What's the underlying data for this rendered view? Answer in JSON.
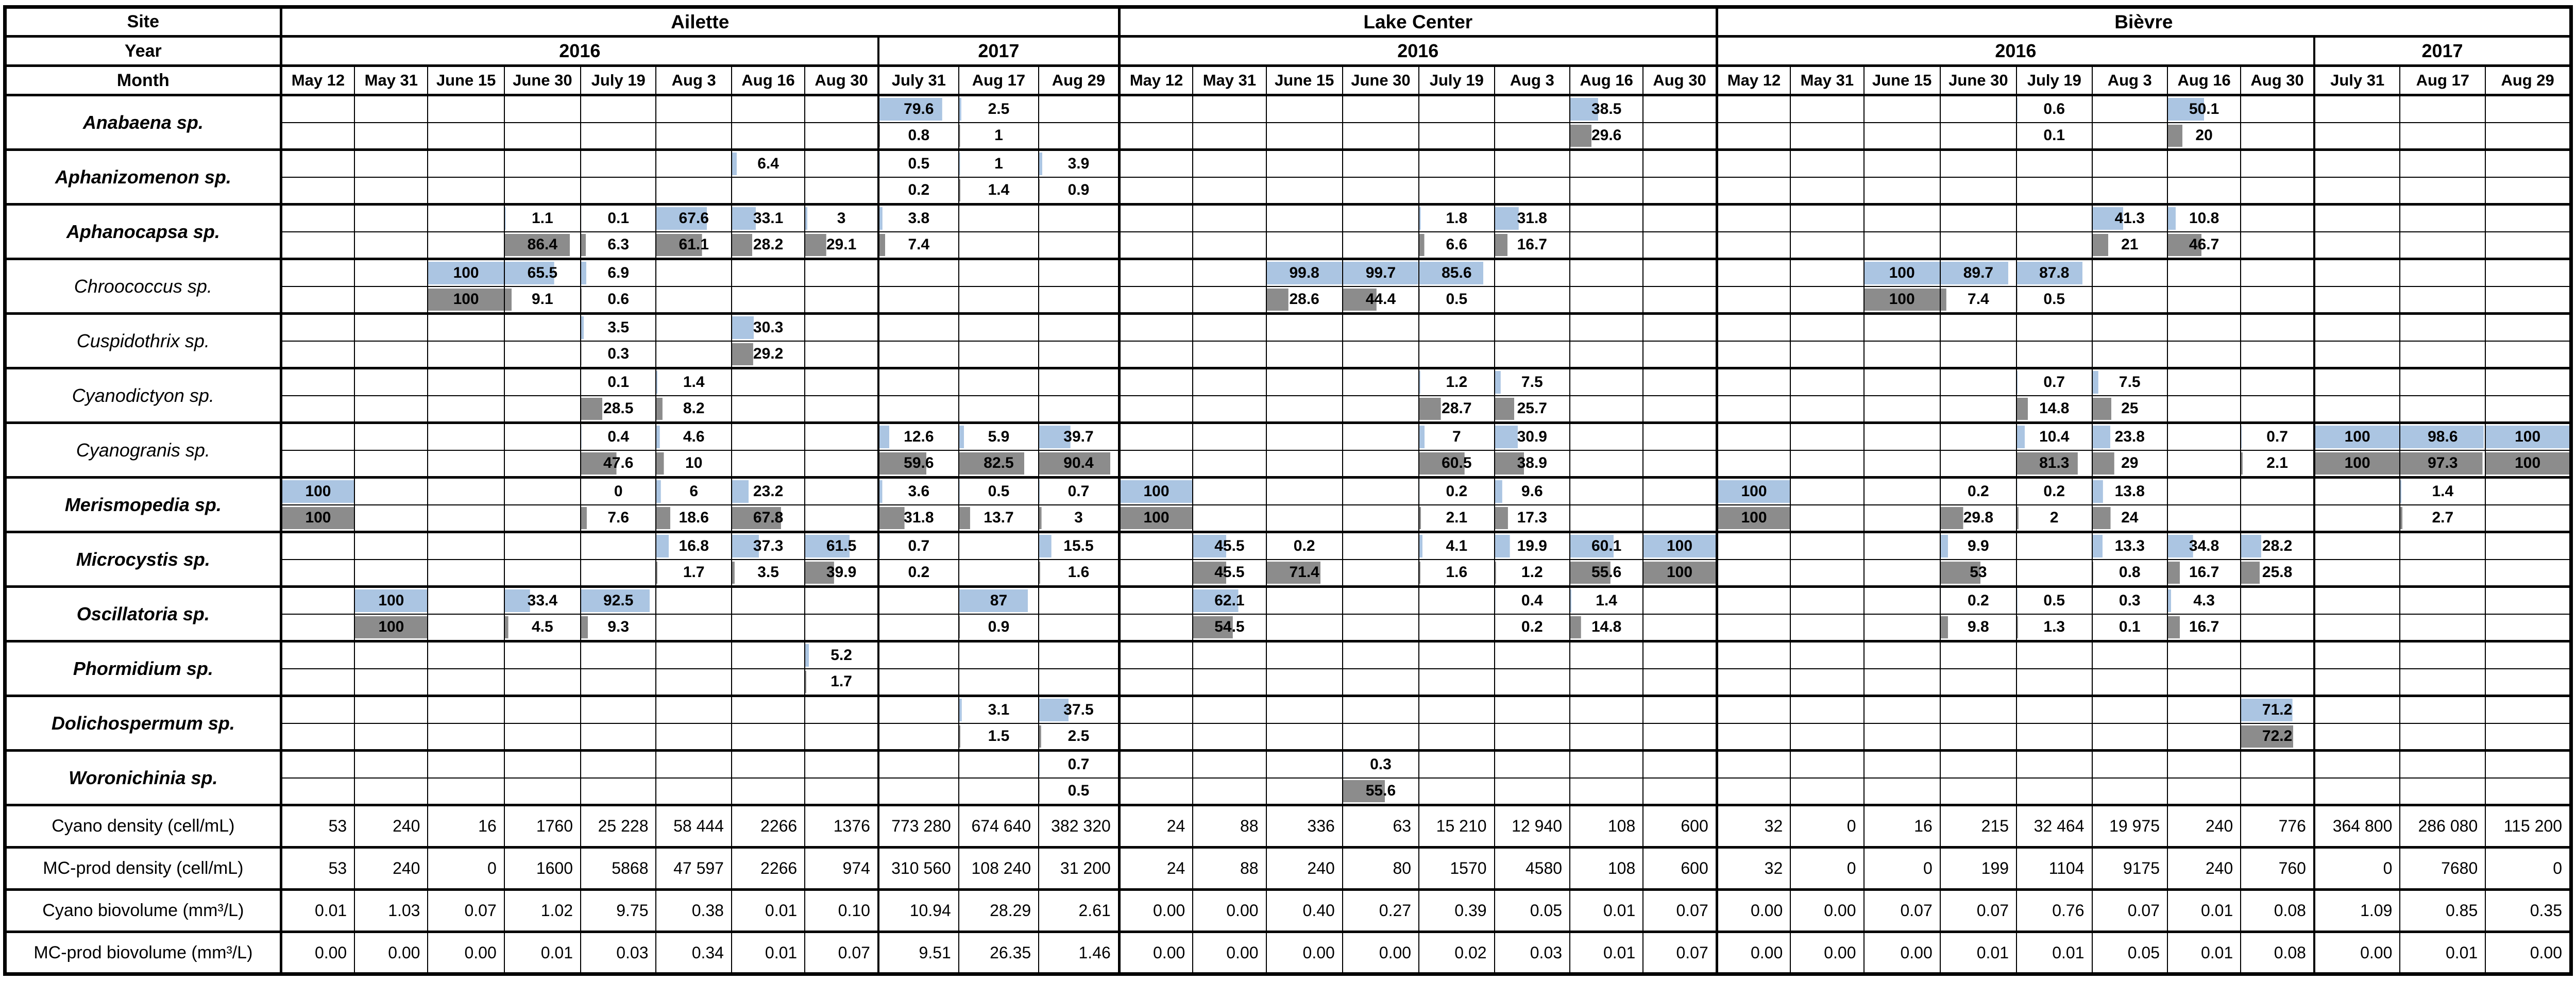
{
  "header": {
    "site_label": "Site",
    "year_label": "Year",
    "month_label": "Month"
  },
  "chart_data": {
    "type": "table",
    "description": "Relative abundance (%) of cyanobacteria taxa per sampling date and site; top sub-row (blue data bar) and bottom sub-row (grey data bar) per species, with density and biovolume summary rows.",
    "colors": {
      "top_bar": "#abc5e2",
      "bottom_bar": "#8c8c8c",
      "grid": "#000000"
    },
    "column_groups": [
      {
        "site": "Ailette",
        "years": [
          {
            "year": "2016",
            "months": [
              "May 12",
              "May 31",
              "June 15",
              "June 30",
              "July 19",
              "Aug 3",
              "Aug 16",
              "Aug 30"
            ]
          },
          {
            "year": "2017",
            "months": [
              "July 31",
              "Aug 17",
              "Aug 29"
            ]
          }
        ]
      },
      {
        "site": "Lake Center",
        "years": [
          {
            "year": "2016",
            "months": [
              "May 12",
              "May 31",
              "June 15",
              "June 30",
              "July 19",
              "Aug 3",
              "Aug 16",
              "Aug 30"
            ]
          }
        ]
      },
      {
        "site": "Bièvre",
        "years": [
          {
            "year": "2016",
            "months": [
              "May 12",
              "May 31",
              "June 15",
              "June 30",
              "July 19",
              "Aug 3",
              "Aug 16",
              "Aug 30"
            ]
          },
          {
            "year": "2017",
            "months": [
              "July 31",
              "Aug 17",
              "Aug 29"
            ]
          }
        ]
      }
    ],
    "species": [
      {
        "name": "Anabaena sp.",
        "bold": true,
        "top": [
          "",
          "",
          "",
          "",
          "",
          "",
          "",
          "",
          "79.6",
          "2.5",
          "",
          "",
          "",
          "",
          "",
          "",
          "",
          "38.5",
          "",
          "",
          "",
          "",
          "",
          "0.6",
          "",
          "50.1",
          "",
          "",
          "",
          ""
        ],
        "bottom": [
          "",
          "",
          "",
          "",
          "",
          "",
          "",
          "",
          "0.8",
          "1",
          "",
          "",
          "",
          "",
          "",
          "",
          "",
          "29.6",
          "",
          "",
          "",
          "",
          "",
          "0.1",
          "",
          "20",
          "",
          "",
          "",
          ""
        ]
      },
      {
        "name": "Aphanizomenon sp.",
        "bold": true,
        "top": [
          "",
          "",
          "",
          "",
          "",
          "",
          "6.4",
          "",
          "0.5",
          "1",
          "3.9",
          "",
          "",
          "",
          "",
          "",
          "",
          "",
          "",
          "",
          "",
          "",
          "",
          "",
          "",
          "",
          "",
          "",
          "",
          ""
        ],
        "bottom": [
          "",
          "",
          "",
          "",
          "",
          "",
          "",
          "",
          "0.2",
          "1.4",
          "0.9",
          "",
          "",
          "",
          "",
          "",
          "",
          "",
          "",
          "",
          "",
          "",
          "",
          "",
          "",
          "",
          "",
          "",
          "",
          ""
        ]
      },
      {
        "name": "Aphanocapsa sp.",
        "bold": true,
        "top": [
          "",
          "",
          "",
          "1.1",
          "0.1",
          "67.6",
          "33.1",
          "3",
          "3.8",
          "",
          "",
          "",
          "",
          "",
          "",
          "1.8",
          "31.8",
          "",
          "",
          "",
          "",
          "",
          "",
          "",
          "41.3",
          "10.8",
          "",
          "",
          "",
          ""
        ],
        "bottom": [
          "",
          "",
          "",
          "86.4",
          "6.3",
          "61.1",
          "28.2",
          "29.1",
          "7.4",
          "",
          "",
          "",
          "",
          "",
          "",
          "6.6",
          "16.7",
          "",
          "",
          "",
          "",
          "",
          "",
          "",
          "21",
          "46.7",
          "",
          "",
          "",
          ""
        ]
      },
      {
        "name": "Chroococcus sp.",
        "bold": false,
        "top": [
          "",
          "",
          "100",
          "65.5",
          "6.9",
          "",
          "",
          "",
          "",
          "",
          "",
          "",
          "",
          "99.8",
          "99.7",
          "85.6",
          "",
          "",
          "",
          "",
          "",
          "100",
          "89.7",
          "87.8",
          "",
          "",
          "",
          "",
          "",
          ""
        ],
        "bottom": [
          "",
          "",
          "100",
          "9.1",
          "0.6",
          "",
          "",
          "",
          "",
          "",
          "",
          "",
          "",
          "28.6",
          "44.4",
          "0.5",
          "",
          "",
          "",
          "",
          "",
          "100",
          "7.4",
          "0.5",
          "",
          "",
          "",
          "",
          "",
          ""
        ]
      },
      {
        "name": "Cuspidothrix sp.",
        "bold": false,
        "top": [
          "",
          "",
          "",
          "",
          "3.5",
          "",
          "30.3",
          "",
          "",
          "",
          "",
          "",
          "",
          "",
          "",
          "",
          "",
          "",
          "",
          "",
          "",
          "",
          "",
          "",
          "",
          "",
          "",
          "",
          "",
          ""
        ],
        "bottom": [
          "",
          "",
          "",
          "",
          "0.3",
          "",
          "29.2",
          "",
          "",
          "",
          "",
          "",
          "",
          "",
          "",
          "",
          "",
          "",
          "",
          "",
          "",
          "",
          "",
          "",
          "",
          "",
          "",
          "",
          "",
          ""
        ]
      },
      {
        "name": "Cyanodictyon sp.",
        "bold": false,
        "top": [
          "",
          "",
          "",
          "",
          "0.1",
          "1.4",
          "",
          "",
          "",
          "",
          "",
          "",
          "",
          "",
          "",
          "1.2",
          "7.5",
          "",
          "",
          "",
          "",
          "",
          "",
          "0.7",
          "7.5",
          "",
          "",
          "",
          "",
          ""
        ],
        "bottom": [
          "",
          "",
          "",
          "",
          "28.5",
          "8.2",
          "",
          "",
          "",
          "",
          "",
          "",
          "",
          "",
          "",
          "28.7",
          "25.7",
          "",
          "",
          "",
          "",
          "",
          "",
          "14.8",
          "25",
          "",
          "",
          "",
          "",
          ""
        ]
      },
      {
        "name": "Cyanogranis sp.",
        "bold": false,
        "top": [
          "",
          "",
          "",
          "",
          "0.4",
          "4.6",
          "",
          "",
          "12.6",
          "5.9",
          "39.7",
          "",
          "",
          "",
          "",
          "7",
          "30.9",
          "",
          "",
          "",
          "",
          "",
          "",
          "10.4",
          "23.8",
          "",
          "0.7",
          "100",
          "98.6",
          "100"
        ],
        "bottom": [
          "",
          "",
          "",
          "",
          "47.6",
          "10",
          "",
          "",
          "59.6",
          "82.5",
          "90.4",
          "",
          "",
          "",
          "",
          "60.5",
          "38.9",
          "",
          "",
          "",
          "",
          "",
          "",
          "81.3",
          "29",
          "",
          "2.1",
          "100",
          "97.3",
          "100"
        ]
      },
      {
        "name": "Merismopedia sp.",
        "bold": true,
        "top": [
          "100",
          "",
          "",
          "",
          "0",
          "6",
          "23.2",
          "",
          "3.6",
          "0.5",
          "0.7",
          "100",
          "",
          "",
          "",
          "0.2",
          "9.6",
          "",
          "",
          "100",
          "",
          "",
          "0.2",
          "0.2",
          "13.8",
          "",
          "",
          "",
          "1.4",
          ""
        ],
        "bottom": [
          "100",
          "",
          "",
          "",
          "7.6",
          "18.6",
          "67.8",
          "",
          "31.8",
          "13.7",
          "3",
          "100",
          "",
          "",
          "",
          "2.1",
          "17.3",
          "",
          "",
          "100",
          "",
          "",
          "29.8",
          "2",
          "24",
          "",
          "",
          "",
          "2.7",
          ""
        ]
      },
      {
        "name": "Microcystis sp.",
        "bold": true,
        "top": [
          "",
          "",
          "",
          "",
          "",
          "16.8",
          "37.3",
          "61.5",
          "0.7",
          "",
          "15.5",
          "",
          "45.5",
          "0.2",
          "",
          "4.1",
          "19.9",
          "60.1",
          "100",
          "",
          "",
          "",
          "9.9",
          "",
          "13.3",
          "34.8",
          "28.2",
          "",
          "",
          ""
        ],
        "bottom": [
          "",
          "",
          "",
          "",
          "",
          "1.7",
          "3.5",
          "39.9",
          "0.2",
          "",
          "1.6",
          "",
          "45.5",
          "71.4",
          "",
          "1.6",
          "1.2",
          "55.6",
          "100",
          "",
          "",
          "",
          "53",
          "",
          "0.8",
          "16.7",
          "25.8",
          "",
          "",
          ""
        ]
      },
      {
        "name": "Oscillatoria sp.",
        "bold": true,
        "top": [
          "",
          "100",
          "",
          "33.4",
          "92.5",
          "",
          "",
          "",
          "",
          "87",
          "",
          "",
          "62.1",
          "",
          "",
          "",
          "0.4",
          "1.4",
          "",
          "",
          "",
          "",
          "0.2",
          "0.5",
          "0.3",
          "4.3",
          "",
          "",
          "",
          ""
        ],
        "bottom": [
          "",
          "100",
          "",
          "4.5",
          "9.3",
          "",
          "",
          "",
          "",
          "0.9",
          "",
          "",
          "54.5",
          "",
          "",
          "",
          "0.2",
          "14.8",
          "",
          "",
          "",
          "",
          "9.8",
          "1.3",
          "0.1",
          "16.7",
          "",
          "",
          "",
          ""
        ]
      },
      {
        "name": "Phormidium sp.",
        "bold": true,
        "top": [
          "",
          "",
          "",
          "",
          "",
          "",
          "",
          "5.2",
          "",
          "",
          "",
          "",
          "",
          "",
          "",
          "",
          "",
          "",
          "",
          "",
          "",
          "",
          "",
          "",
          "",
          "",
          "",
          "",
          "",
          ""
        ],
        "bottom": [
          "",
          "",
          "",
          "",
          "",
          "",
          "",
          "1.7",
          "",
          "",
          "",
          "",
          "",
          "",
          "",
          "",
          "",
          "",
          "",
          "",
          "",
          "",
          "",
          "",
          "",
          "",
          "",
          "",
          "",
          ""
        ]
      },
      {
        "name": "Dolichospermum sp.",
        "bold": true,
        "top": [
          "",
          "",
          "",
          "",
          "",
          "",
          "",
          "",
          "",
          "3.1",
          "37.5",
          "",
          "",
          "",
          "",
          "",
          "",
          "",
          "",
          "",
          "",
          "",
          "",
          "",
          "",
          "",
          "71.2",
          "",
          "",
          ""
        ],
        "bottom": [
          "",
          "",
          "",
          "",
          "",
          "",
          "",
          "",
          "",
          "1.5",
          "2.5",
          "",
          "",
          "",
          "",
          "",
          "",
          "",
          "",
          "",
          "",
          "",
          "",
          "",
          "",
          "",
          "72.2",
          "",
          "",
          ""
        ]
      },
      {
        "name": "Woronichinia sp.",
        "bold": true,
        "top": [
          "",
          "",
          "",
          "",
          "",
          "",
          "",
          "",
          "",
          "",
          "0.7",
          "",
          "",
          "",
          "0.3",
          "",
          "",
          "",
          "",
          "",
          "",
          "",
          "",
          "",
          "",
          "",
          "",
          "",
          "",
          ""
        ],
        "bottom": [
          "",
          "",
          "",
          "",
          "",
          "",
          "",
          "",
          "",
          "",
          "0.5",
          "",
          "",
          "",
          "55.6",
          "",
          "",
          "",
          "",
          "",
          "",
          "",
          "",
          "",
          "",
          "",
          "",
          "",
          "",
          ""
        ]
      }
    ],
    "summary_rows": [
      {
        "label": "Cyano density (cell/mL)",
        "values": [
          "53",
          "240",
          "16",
          "1760",
          "25 228",
          "58 444",
          "2266",
          "1376",
          "773 280",
          "674 640",
          "382 320",
          "24",
          "88",
          "336",
          "63",
          "15 210",
          "12 940",
          "108",
          "600",
          "32",
          "0",
          "16",
          "215",
          "32 464",
          "19 975",
          "240",
          "776",
          "364 800",
          "286 080",
          "115 200"
        ]
      },
      {
        "label": "MC-prod density (cell/mL)",
        "values": [
          "53",
          "240",
          "0",
          "1600",
          "5868",
          "47 597",
          "2266",
          "974",
          "310 560",
          "108 240",
          "31 200",
          "24",
          "88",
          "240",
          "80",
          "1570",
          "4580",
          "108",
          "600",
          "32",
          "0",
          "0",
          "199",
          "1104",
          "9175",
          "240",
          "760",
          "0",
          "7680",
          "0"
        ]
      },
      {
        "label": "Cyano biovolume (mm³/L)",
        "values": [
          "0.01",
          "1.03",
          "0.07",
          "1.02",
          "9.75",
          "0.38",
          "0.01",
          "0.10",
          "10.94",
          "28.29",
          "2.61",
          "0.00",
          "0.00",
          "0.40",
          "0.27",
          "0.39",
          "0.05",
          "0.01",
          "0.07",
          "0.00",
          "0.00",
          "0.07",
          "0.07",
          "0.76",
          "0.07",
          "0.01",
          "0.08",
          "1.09",
          "0.85",
          "0.35"
        ]
      },
      {
        "label": "MC-prod biovolume (mm³/L)",
        "values": [
          "0.00",
          "0.00",
          "0.00",
          "0.01",
          "0.03",
          "0.34",
          "0.01",
          "0.07",
          "9.51",
          "26.35",
          "1.46",
          "0.00",
          "0.00",
          "0.00",
          "0.00",
          "0.02",
          "0.03",
          "0.01",
          "0.07",
          "0.00",
          "0.00",
          "0.00",
          "0.01",
          "0.01",
          "0.05",
          "0.01",
          "0.08",
          "0.00",
          "0.01",
          "0.00"
        ]
      }
    ]
  }
}
